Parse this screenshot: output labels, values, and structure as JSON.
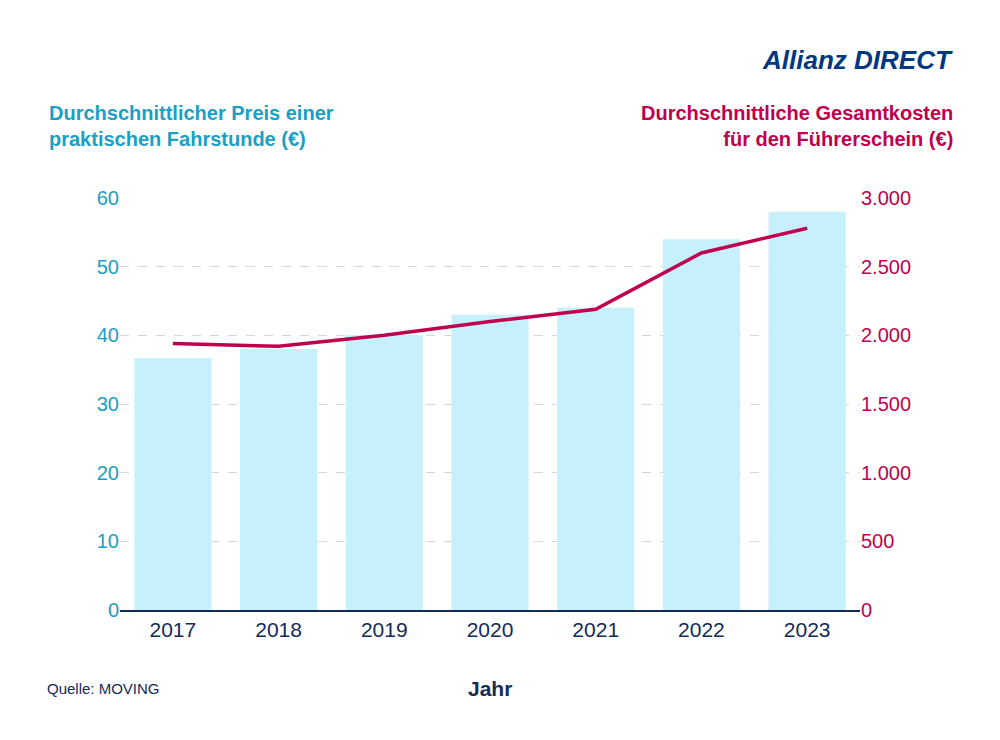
{
  "chart_data": {
    "type": "bar",
    "logo": "Allianz DIRECT",
    "x_label": "Jahr",
    "y_label": "Durchschnittlicher Preis einer\npraktischen Fahrstunde (€)",
    "y2_label": "Durchschnittliche Gesamtkosten\nfür den Führerschein (€)",
    "source": "Quelle: MOVING",
    "categories": [
      "2017",
      "2018",
      "2019",
      "2020",
      "2021",
      "2022",
      "2023"
    ],
    "series": [
      {
        "name": "Durchschnittlicher Preis einer praktischen Fahrstunde (€)",
        "type": "bar",
        "color": "#c6f0fc",
        "values": [
          36.7,
          38,
          40,
          43,
          44,
          54,
          58
        ]
      },
      {
        "name": "Durchschnittliche Gesamtkosten für den Führerschein (€)",
        "type": "line",
        "axis": "y2",
        "color": "#c0004e",
        "values": [
          1940,
          1920,
          2000,
          2100,
          2190,
          2600,
          2780
        ]
      }
    ],
    "ylim": [
      0,
      60
    ],
    "yticks": [
      0,
      10,
      20,
      30,
      40,
      50,
      60
    ],
    "y2lim": [
      0,
      3000
    ],
    "y2ticks": [
      0,
      500,
      {
        "value": 1000,
        "label": "1.000"
      },
      {
        "value": 1500,
        "label": "1.500"
      },
      {
        "value": 2000,
        "label": "2.000"
      },
      {
        "value": 2500,
        "label": "2.500"
      },
      {
        "value": 3000,
        "label": "3.000"
      }
    ],
    "grid": true
  }
}
